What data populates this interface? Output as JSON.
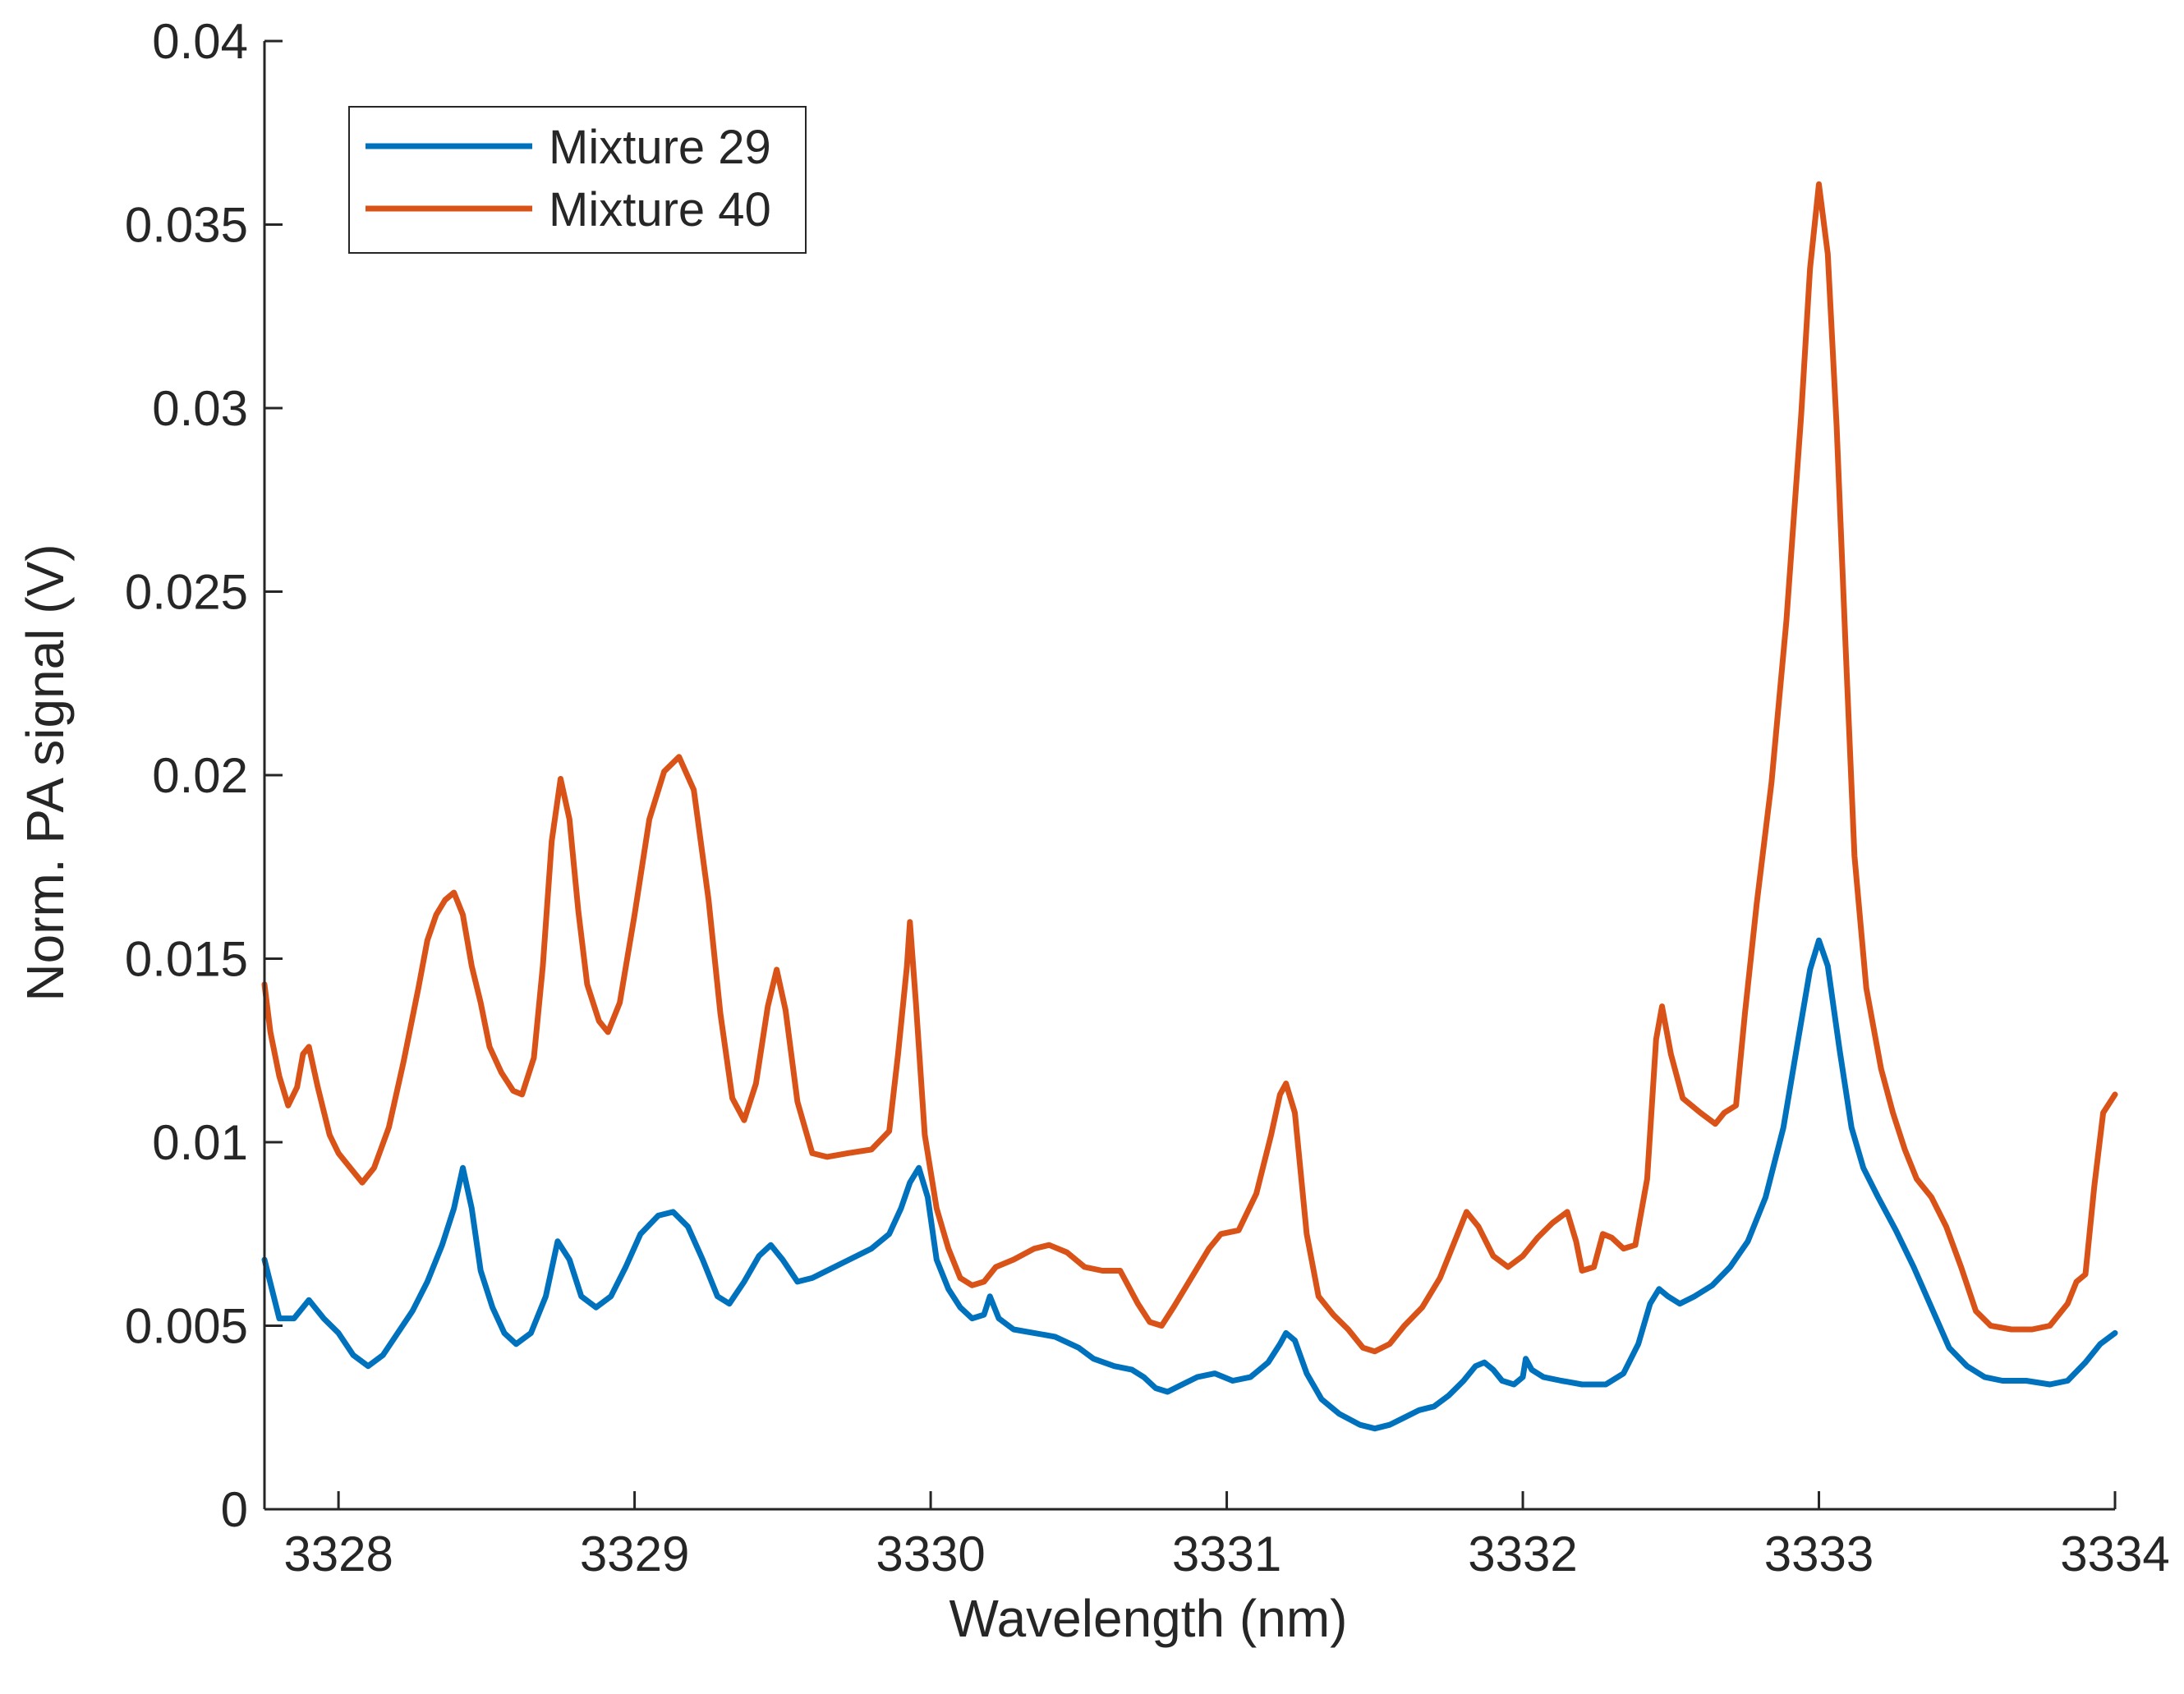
{
  "chart_data": {
    "type": "line",
    "title": "",
    "xlabel": "Wavelength (nm)",
    "ylabel": "Norm. PA signal (V)",
    "xlim": [
      3327.75,
      3334.0
    ],
    "ylim": [
      0,
      0.04
    ],
    "xticks": [
      3328,
      3329,
      3330,
      3331,
      3332,
      3333,
      3334
    ],
    "xtick_labels": [
      "3328",
      "3329",
      "3330",
      "3331",
      "3332",
      "3333",
      "3334"
    ],
    "yticks": [
      0,
      0.005,
      0.01,
      0.015,
      0.02,
      0.025,
      0.03,
      0.035,
      0.04
    ],
    "ytick_labels": [
      "0",
      "0.005",
      "0.01",
      "0.015",
      "0.02",
      "0.025",
      "0.03",
      "0.035",
      "0.04"
    ],
    "grid": false,
    "legend_position": "top-left",
    "series": [
      {
        "name": "Mixture 29",
        "color": "#0072BD",
        "points": [
          [
            3327.75,
            0.0068
          ],
          [
            3327.8,
            0.0052
          ],
          [
            3327.85,
            0.0052
          ],
          [
            3327.9,
            0.0057
          ],
          [
            3327.95,
            0.0052
          ],
          [
            3328.0,
            0.0048
          ],
          [
            3328.05,
            0.0042
          ],
          [
            3328.1,
            0.0039
          ],
          [
            3328.15,
            0.0042
          ],
          [
            3328.2,
            0.0048
          ],
          [
            3328.25,
            0.0054
          ],
          [
            3328.3,
            0.0062
          ],
          [
            3328.35,
            0.0072
          ],
          [
            3328.39,
            0.0082
          ],
          [
            3328.42,
            0.0093
          ],
          [
            3328.45,
            0.0082
          ],
          [
            3328.48,
            0.0065
          ],
          [
            3328.52,
            0.0055
          ],
          [
            3328.56,
            0.0048
          ],
          [
            3328.6,
            0.0045
          ],
          [
            3328.65,
            0.0048
          ],
          [
            3328.7,
            0.0058
          ],
          [
            3328.74,
            0.0073
          ],
          [
            3328.78,
            0.0068
          ],
          [
            3328.82,
            0.0058
          ],
          [
            3328.87,
            0.0055
          ],
          [
            3328.92,
            0.0058
          ],
          [
            3328.97,
            0.0066
          ],
          [
            3329.02,
            0.0075
          ],
          [
            3329.08,
            0.008
          ],
          [
            3329.13,
            0.0081
          ],
          [
            3329.18,
            0.0077
          ],
          [
            3329.23,
            0.0068
          ],
          [
            3329.28,
            0.0058
          ],
          [
            3329.32,
            0.0056
          ],
          [
            3329.37,
            0.0062
          ],
          [
            3329.42,
            0.0069
          ],
          [
            3329.46,
            0.0072
          ],
          [
            3329.5,
            0.0068
          ],
          [
            3329.55,
            0.0062
          ],
          [
            3329.6,
            0.0063
          ],
          [
            3329.7,
            0.0067
          ],
          [
            3329.8,
            0.0071
          ],
          [
            3329.86,
            0.0075
          ],
          [
            3329.9,
            0.0082
          ],
          [
            3329.93,
            0.0089
          ],
          [
            3329.96,
            0.0093
          ],
          [
            3329.99,
            0.0085
          ],
          [
            3330.02,
            0.0068
          ],
          [
            3330.06,
            0.006
          ],
          [
            3330.1,
            0.0055
          ],
          [
            3330.14,
            0.0052
          ],
          [
            3330.18,
            0.0053
          ],
          [
            3330.2,
            0.0058
          ],
          [
            3330.23,
            0.0052
          ],
          [
            3330.28,
            0.0049
          ],
          [
            3330.35,
            0.0048
          ],
          [
            3330.42,
            0.0047
          ],
          [
            3330.5,
            0.0044
          ],
          [
            3330.55,
            0.0041
          ],
          [
            3330.62,
            0.0039
          ],
          [
            3330.68,
            0.0038
          ],
          [
            3330.72,
            0.0036
          ],
          [
            3330.76,
            0.0033
          ],
          [
            3330.8,
            0.0032
          ],
          [
            3330.85,
            0.0034
          ],
          [
            3330.9,
            0.0036
          ],
          [
            3330.96,
            0.0037
          ],
          [
            3331.02,
            0.0035
          ],
          [
            3331.08,
            0.0036
          ],
          [
            3331.14,
            0.004
          ],
          [
            3331.18,
            0.0045
          ],
          [
            3331.2,
            0.0048
          ],
          [
            3331.23,
            0.0046
          ],
          [
            3331.27,
            0.0037
          ],
          [
            3331.32,
            0.003
          ],
          [
            3331.38,
            0.0026
          ],
          [
            3331.45,
            0.0023
          ],
          [
            3331.5,
            0.0022
          ],
          [
            3331.55,
            0.0023
          ],
          [
            3331.6,
            0.0025
          ],
          [
            3331.65,
            0.0027
          ],
          [
            3331.7,
            0.0028
          ],
          [
            3331.75,
            0.0031
          ],
          [
            3331.8,
            0.0035
          ],
          [
            3331.84,
            0.0039
          ],
          [
            3331.87,
            0.004
          ],
          [
            3331.9,
            0.0038
          ],
          [
            3331.93,
            0.0035
          ],
          [
            3331.97,
            0.0034
          ],
          [
            3332.0,
            0.0036
          ],
          [
            3332.01,
            0.0041
          ],
          [
            3332.03,
            0.0038
          ],
          [
            3332.07,
            0.0036
          ],
          [
            3332.13,
            0.0035
          ],
          [
            3332.2,
            0.0034
          ],
          [
            3332.28,
            0.0034
          ],
          [
            3332.34,
            0.0037
          ],
          [
            3332.39,
            0.0045
          ],
          [
            3332.43,
            0.0056
          ],
          [
            3332.46,
            0.006
          ],
          [
            3332.49,
            0.0058
          ],
          [
            3332.53,
            0.0056
          ],
          [
            3332.58,
            0.0058
          ],
          [
            3332.64,
            0.0061
          ],
          [
            3332.7,
            0.0066
          ],
          [
            3332.76,
            0.0073
          ],
          [
            3332.82,
            0.0085
          ],
          [
            3332.88,
            0.0104
          ],
          [
            3332.93,
            0.0128
          ],
          [
            3332.97,
            0.0147
          ],
          [
            3333.0,
            0.0155
          ],
          [
            3333.03,
            0.0148
          ],
          [
            3333.07,
            0.0125
          ],
          [
            3333.11,
            0.0104
          ],
          [
            3333.15,
            0.0093
          ],
          [
            3333.2,
            0.0085
          ],
          [
            3333.26,
            0.0076
          ],
          [
            3333.32,
            0.0066
          ],
          [
            3333.38,
            0.0055
          ],
          [
            3333.44,
            0.0044
          ],
          [
            3333.5,
            0.0039
          ],
          [
            3333.56,
            0.0036
          ],
          [
            3333.62,
            0.0035
          ],
          [
            3333.7,
            0.0035
          ],
          [
            3333.78,
            0.0034
          ],
          [
            3333.84,
            0.0035
          ],
          [
            3333.9,
            0.004
          ],
          [
            3333.95,
            0.0045
          ],
          [
            3334.0,
            0.0048
          ]
        ]
      },
      {
        "name": "Mixture 40",
        "color": "#D95319",
        "points": [
          [
            3327.75,
            0.0143
          ],
          [
            3327.77,
            0.013
          ],
          [
            3327.8,
            0.0118
          ],
          [
            3327.83,
            0.011
          ],
          [
            3327.86,
            0.0115
          ],
          [
            3327.88,
            0.0124
          ],
          [
            3327.9,
            0.0126
          ],
          [
            3327.93,
            0.0115
          ],
          [
            3327.97,
            0.0102
          ],
          [
            3328.0,
            0.0097
          ],
          [
            3328.04,
            0.0093
          ],
          [
            3328.08,
            0.0089
          ],
          [
            3328.12,
            0.0093
          ],
          [
            3328.17,
            0.0104
          ],
          [
            3328.22,
            0.0122
          ],
          [
            3328.27,
            0.0142
          ],
          [
            3328.3,
            0.0155
          ],
          [
            3328.33,
            0.0162
          ],
          [
            3328.36,
            0.0166
          ],
          [
            3328.39,
            0.0168
          ],
          [
            3328.42,
            0.0162
          ],
          [
            3328.45,
            0.0148
          ],
          [
            3328.48,
            0.0138
          ],
          [
            3328.51,
            0.0126
          ],
          [
            3328.55,
            0.0119
          ],
          [
            3328.59,
            0.0114
          ],
          [
            3328.62,
            0.0113
          ],
          [
            3328.66,
            0.0123
          ],
          [
            3328.69,
            0.0148
          ],
          [
            3328.72,
            0.0182
          ],
          [
            3328.75,
            0.0199
          ],
          [
            3328.78,
            0.0188
          ],
          [
            3328.81,
            0.0163
          ],
          [
            3328.84,
            0.0143
          ],
          [
            3328.88,
            0.0133
          ],
          [
            3328.91,
            0.013
          ],
          [
            3328.95,
            0.0138
          ],
          [
            3329.0,
            0.0162
          ],
          [
            3329.05,
            0.0188
          ],
          [
            3329.1,
            0.0201
          ],
          [
            3329.15,
            0.0205
          ],
          [
            3329.2,
            0.0196
          ],
          [
            3329.25,
            0.0166
          ],
          [
            3329.29,
            0.0135
          ],
          [
            3329.33,
            0.0112
          ],
          [
            3329.37,
            0.0106
          ],
          [
            3329.41,
            0.0116
          ],
          [
            3329.45,
            0.0137
          ],
          [
            3329.48,
            0.0147
          ],
          [
            3329.51,
            0.0136
          ],
          [
            3329.55,
            0.0111
          ],
          [
            3329.6,
            0.0097
          ],
          [
            3329.65,
            0.0096
          ],
          [
            3329.72,
            0.0097
          ],
          [
            3329.8,
            0.0098
          ],
          [
            3329.86,
            0.0103
          ],
          [
            3329.89,
            0.0124
          ],
          [
            3329.92,
            0.0148
          ],
          [
            3329.93,
            0.016
          ],
          [
            3329.95,
            0.0138
          ],
          [
            3329.98,
            0.0102
          ],
          [
            3330.02,
            0.0082
          ],
          [
            3330.06,
            0.0071
          ],
          [
            3330.1,
            0.0063
          ],
          [
            3330.14,
            0.0061
          ],
          [
            3330.18,
            0.0062
          ],
          [
            3330.22,
            0.0066
          ],
          [
            3330.28,
            0.0068
          ],
          [
            3330.35,
            0.0071
          ],
          [
            3330.4,
            0.0072
          ],
          [
            3330.46,
            0.007
          ],
          [
            3330.52,
            0.0066
          ],
          [
            3330.58,
            0.0065
          ],
          [
            3330.64,
            0.0065
          ],
          [
            3330.7,
            0.0056
          ],
          [
            3330.74,
            0.0051
          ],
          [
            3330.78,
            0.005
          ],
          [
            3330.82,
            0.0055
          ],
          [
            3330.88,
            0.0063
          ],
          [
            3330.94,
            0.0071
          ],
          [
            3330.98,
            0.0075
          ],
          [
            3331.04,
            0.0076
          ],
          [
            3331.1,
            0.0086
          ],
          [
            3331.15,
            0.0102
          ],
          [
            3331.18,
            0.0113
          ],
          [
            3331.2,
            0.0116
          ],
          [
            3331.23,
            0.0108
          ],
          [
            3331.27,
            0.0075
          ],
          [
            3331.31,
            0.0058
          ],
          [
            3331.36,
            0.0053
          ],
          [
            3331.41,
            0.0049
          ],
          [
            3331.46,
            0.0044
          ],
          [
            3331.5,
            0.0043
          ],
          [
            3331.55,
            0.0045
          ],
          [
            3331.6,
            0.005
          ],
          [
            3331.66,
            0.0055
          ],
          [
            3331.72,
            0.0063
          ],
          [
            3331.77,
            0.0073
          ],
          [
            3331.81,
            0.0081
          ],
          [
            3331.85,
            0.0077
          ],
          [
            3331.9,
            0.0069
          ],
          [
            3331.95,
            0.0066
          ],
          [
            3332.0,
            0.0069
          ],
          [
            3332.05,
            0.0074
          ],
          [
            3332.1,
            0.0078
          ],
          [
            3332.15,
            0.0081
          ],
          [
            3332.18,
            0.0073
          ],
          [
            3332.2,
            0.0065
          ],
          [
            3332.24,
            0.0066
          ],
          [
            3332.27,
            0.0075
          ],
          [
            3332.3,
            0.0074
          ],
          [
            3332.34,
            0.0071
          ],
          [
            3332.38,
            0.0072
          ],
          [
            3332.42,
            0.009
          ],
          [
            3332.45,
            0.0128
          ],
          [
            3332.47,
            0.0137
          ],
          [
            3332.5,
            0.0124
          ],
          [
            3332.54,
            0.0112
          ],
          [
            3332.6,
            0.0108
          ],
          [
            3332.65,
            0.0105
          ],
          [
            3332.68,
            0.0108
          ],
          [
            3332.72,
            0.011
          ],
          [
            3332.75,
            0.0135
          ],
          [
            3332.79,
            0.0165
          ],
          [
            3332.84,
            0.0198
          ],
          [
            3332.89,
            0.0242
          ],
          [
            3332.94,
            0.0298
          ],
          [
            3332.97,
            0.0338
          ],
          [
            3333.0,
            0.0361
          ],
          [
            3333.03,
            0.0342
          ],
          [
            3333.06,
            0.0295
          ],
          [
            3333.09,
            0.0235
          ],
          [
            3333.12,
            0.0178
          ],
          [
            3333.16,
            0.0142
          ],
          [
            3333.21,
            0.012
          ],
          [
            3333.25,
            0.0108
          ],
          [
            3333.29,
            0.0098
          ],
          [
            3333.33,
            0.009
          ],
          [
            3333.38,
            0.0085
          ],
          [
            3333.43,
            0.0077
          ],
          [
            3333.48,
            0.0066
          ],
          [
            3333.53,
            0.0054
          ],
          [
            3333.58,
            0.005
          ],
          [
            3333.65,
            0.0049
          ],
          [
            3333.72,
            0.0049
          ],
          [
            3333.78,
            0.005
          ],
          [
            3333.84,
            0.0056
          ],
          [
            3333.87,
            0.0062
          ],
          [
            3333.9,
            0.0064
          ],
          [
            3333.93,
            0.0088
          ],
          [
            3333.96,
            0.0108
          ],
          [
            3334.0,
            0.0113
          ]
        ]
      }
    ]
  }
}
